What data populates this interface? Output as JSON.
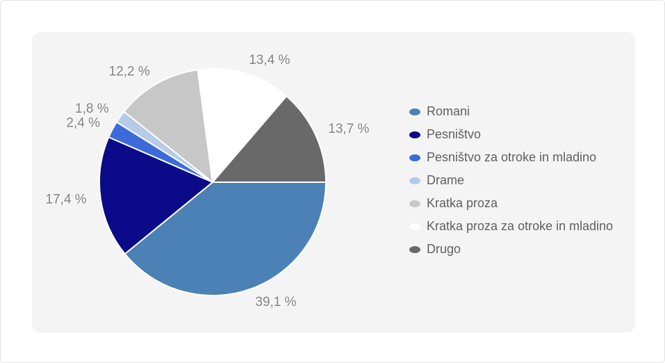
{
  "page": {
    "background": "#ffffff",
    "border_color": "#e2e2e2",
    "panel_background": "#f4f4f4"
  },
  "chart_data": {
    "type": "pie",
    "title": "",
    "unit": "%",
    "decimal_separator": ",",
    "start_angle_deg": 0,
    "direction": "clockwise",
    "legend_position": "right",
    "grid": false,
    "label_color": "#808080",
    "legend_text_color": "#5f5f5f",
    "slice_border_color": "#ffffff",
    "slices": [
      {
        "name": "Romani",
        "value": 39.1,
        "display": "39,1 %",
        "color": "#4B81B4"
      },
      {
        "name": "Pesništvo",
        "value": 17.4,
        "display": "17,4 %",
        "color": "#0B0B8A"
      },
      {
        "name": "Pesništvo za otroke in mladino",
        "value": 2.4,
        "display": "2,4 %",
        "color": "#3C6BD9"
      },
      {
        "name": "Drame",
        "value": 1.8,
        "display": "1,8 %",
        "color": "#B5CBE6"
      },
      {
        "name": "Kratka proza",
        "value": 12.2,
        "display": "12,2 %",
        "color": "#C7C7C7"
      },
      {
        "name": "Kratka proza za otroke in mladino",
        "value": 13.4,
        "display": "13,4 %",
        "color": "#FFFFFF"
      },
      {
        "name": "Drugo",
        "value": 13.7,
        "display": "13,7 %",
        "color": "#696969"
      }
    ]
  }
}
